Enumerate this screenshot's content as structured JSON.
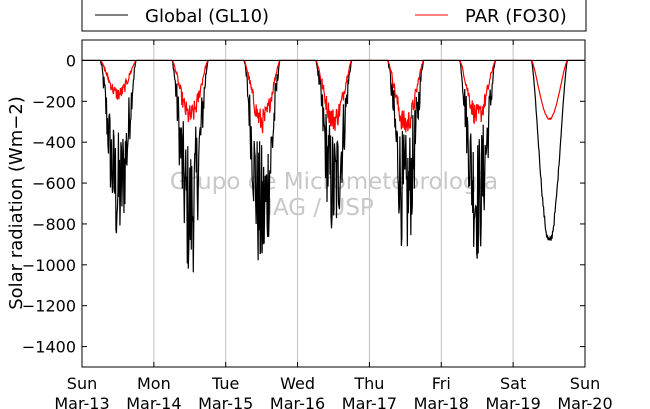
{
  "chart_data": {
    "type": "line",
    "title": "",
    "xlabel": "",
    "ylabel": "Solar radiation (Wm−2)",
    "ylim": [
      -1500,
      100
    ],
    "yticks": [
      0,
      -200,
      -400,
      -600,
      -800,
      -1000,
      -1200,
      -1400
    ],
    "xlim": [
      "2015-03-13 00:00",
      "2015-03-20 00:00"
    ],
    "xticks": [
      {
        "day": "Sun",
        "date": "Mar-13"
      },
      {
        "day": "Mon",
        "date": "Mar-14"
      },
      {
        "day": "Tue",
        "date": "Mar-15"
      },
      {
        "day": "Wed",
        "date": "Mar-16"
      },
      {
        "day": "Thu",
        "date": "Mar-17"
      },
      {
        "day": "Fri",
        "date": "Mar-18"
      },
      {
        "day": "Sat",
        "date": "Mar-19"
      },
      {
        "day": "Sun",
        "date": "Mar-20"
      }
    ],
    "grid": "vertical",
    "legend_placement": "top, outside plot",
    "watermark": [
      "Grupo de Micrometeorologia",
      "IAG / USP"
    ],
    "series": [
      {
        "name": "Global (GL10)",
        "color": "#000000",
        "daily_minimum": [
          -960,
          -1100,
          -1130,
          -920,
          -1010,
          -1000,
          -910
        ]
      },
      {
        "name": "PAR (FO30)",
        "color": "#ff0000",
        "daily_minimum": [
          -200,
          -330,
          -360,
          -350,
          -380,
          -330,
          -290
        ]
      }
    ]
  }
}
